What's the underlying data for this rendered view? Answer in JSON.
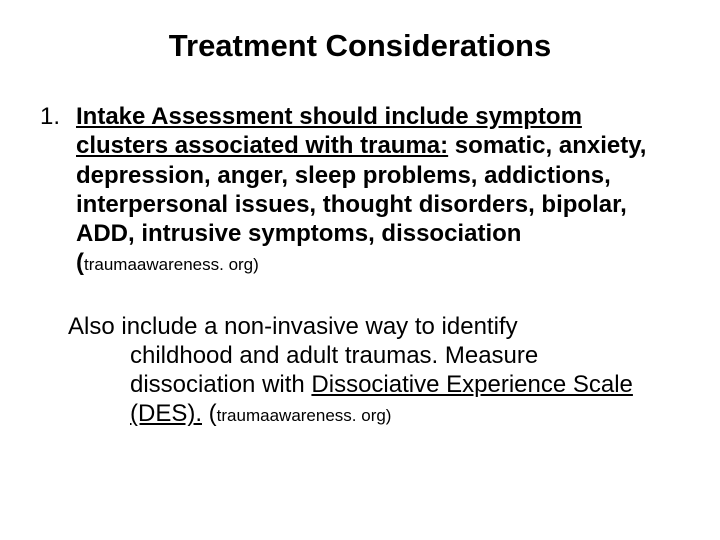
{
  "colors": {
    "background": "#ffffff",
    "text": "#000000"
  },
  "title": "Treatment Considerations",
  "item1": {
    "number": "1.",
    "lead_underlined": "Intake Assessment should include symptom clusters associated with trauma:",
    "rest": " somatic, anxiety, depression, anger, sleep problems, addictions, interpersonal issues, thought disorders, bipolar, ADD, intrusive symptoms, dissociation (",
    "cite": "traumaawareness. org)"
  },
  "para2": {
    "line1": "Also include a non-invasive way to identify",
    "line2": "childhood and adult traumas. Measure",
    "line3_pre": "dissociation with ",
    "line3_underlined": "Dissociative Experience Scale",
    "line4_underlined": "(DES).",
    "line4_after": " (",
    "cite": "traumaawareness. org)"
  }
}
